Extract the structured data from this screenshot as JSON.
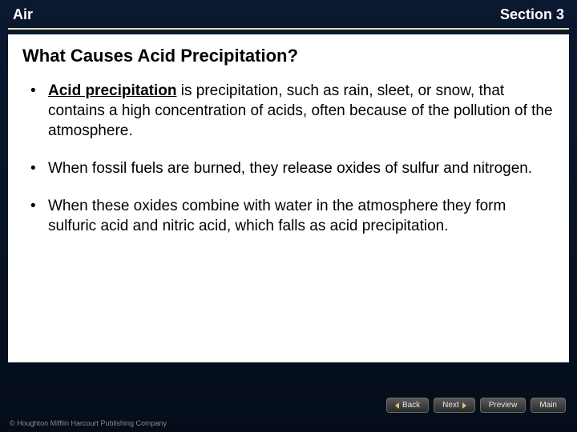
{
  "header": {
    "left": "Air",
    "right": "Section 3"
  },
  "title": "What Causes Acid Precipitation?",
  "bullets": [
    {
      "term": "Acid precipitation",
      "rest": " is precipitation, such as rain, sleet, or snow, that contains a high concentration of acids, often because of the pollution of the atmosphere."
    },
    {
      "text": "When fossil fuels are burned, they release oxides of sulfur and nitrogen."
    },
    {
      "text": "When these oxides combine with water in the atmosphere they form sulfuric acid and nitric acid, which falls as acid precipitation."
    }
  ],
  "nav": {
    "back": "Back",
    "next": "Next",
    "preview": "Preview",
    "main": "Main"
  },
  "copyright": "© Houghton Mifflin Harcourt Publishing Company",
  "colors": {
    "background_gradient_top": "#0a1830",
    "background_gradient_bottom": "#050d1a",
    "header_text": "#ffffff",
    "rule": "#e9dfae",
    "content_bg": "#ffffff",
    "content_text": "#000000",
    "nav_btn_bg_top": "#5a5a5a",
    "nav_btn_bg_bottom": "#2a2a2a",
    "nav_arrow": "#d4c57a",
    "copyright_text": "#8a8a8a"
  },
  "typography": {
    "header_fontsize": 18,
    "title_fontsize": 22,
    "bullet_fontsize": 19,
    "nav_fontsize": 10,
    "copyright_fontsize": 9
  }
}
